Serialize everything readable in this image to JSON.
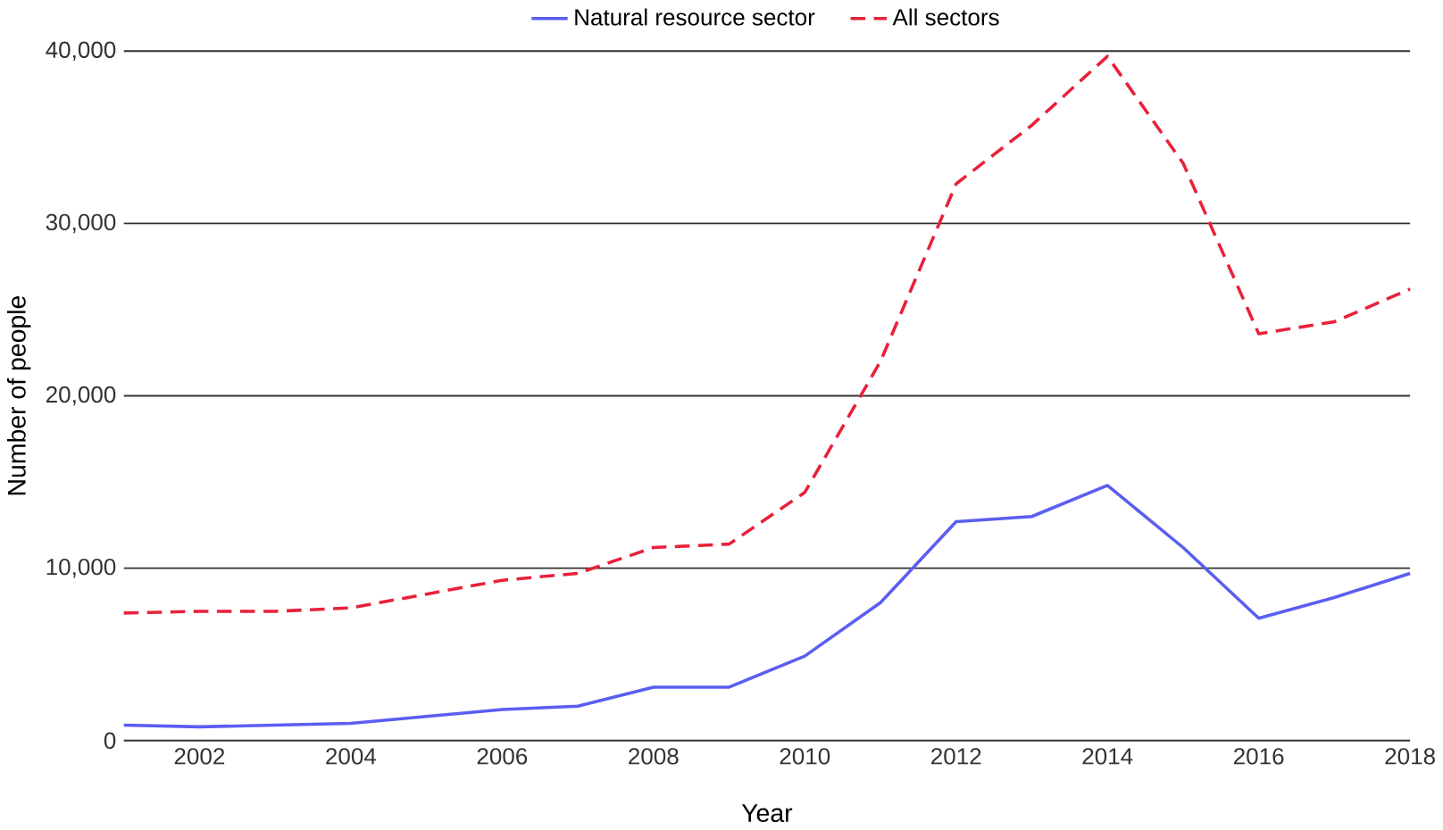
{
  "chart_data": {
    "type": "line",
    "xlabel": "Year",
    "ylabel": "Number of people",
    "x": [
      2001,
      2002,
      2003,
      2004,
      2005,
      2006,
      2007,
      2008,
      2009,
      2010,
      2011,
      2012,
      2013,
      2014,
      2015,
      2016,
      2017,
      2018
    ],
    "series": [
      {
        "name": "Natural resource sector",
        "color": "#5b5ef0",
        "line_style": "solid",
        "values": [
          900,
          800,
          900,
          1000,
          1400,
          1800,
          2000,
          3100,
          3100,
          4900,
          8000,
          12700,
          13000,
          14800,
          11200,
          7100,
          8300,
          9700
        ]
      },
      {
        "name": "All sectors",
        "color": "#e8213a",
        "line_style": "dashed",
        "values": [
          7400,
          7500,
          7500,
          7700,
          8500,
          9300,
          9700,
          11200,
          11400,
          14400,
          22000,
          32300,
          35700,
          39700,
          33500,
          23600,
          24300,
          26200
        ]
      }
    ],
    "xlim": [
      2001,
      2018
    ],
    "xticks": [
      2002,
      2004,
      2006,
      2008,
      2010,
      2012,
      2014,
      2016,
      2018
    ],
    "ylim": [
      0,
      40000
    ],
    "yticks": [
      0,
      {
        "value": 10000,
        "label": "10,000"
      },
      {
        "value": 20000,
        "label": "20,000"
      },
      {
        "value": 30000,
        "label": "30,000"
      },
      {
        "value": 40000,
        "label": "40,000"
      }
    ],
    "grid": "y",
    "legend": "top",
    "marker": "none"
  }
}
